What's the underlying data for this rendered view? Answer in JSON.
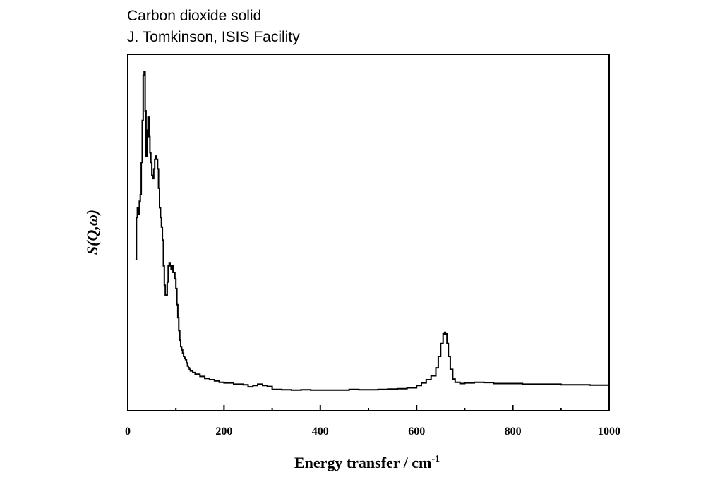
{
  "header": {
    "title_line1": "Carbon dioxide solid",
    "title_line2": "J. Tomkinson, ISIS Facility"
  },
  "chart_data": {
    "type": "line",
    "title": "Carbon dioxide solid",
    "subtitle": "J. Tomkinson, ISIS Facility",
    "xlabel": "Energy transfer / cm",
    "xlabel_superscript": "-1",
    "ylabel": "S(Q,ω)",
    "xlim": [
      0,
      1000
    ],
    "ylim": [
      0,
      1.0
    ],
    "x_ticks": [
      0,
      200,
      400,
      600,
      800,
      1000
    ],
    "x_tick_labels": [
      "0",
      "200",
      "400",
      "600",
      "800",
      "1000"
    ],
    "y_ticks_shown": false,
    "grid": false,
    "legend": "none",
    "line_color": "#000000",
    "series": [
      {
        "x": [
          16,
          18,
          20,
          22,
          24,
          26,
          28,
          30,
          32,
          34,
          36,
          38,
          40,
          42,
          44,
          46,
          48,
          50,
          52,
          54,
          56,
          58,
          60,
          62,
          64,
          66,
          68,
          70,
          72,
          74,
          76,
          78,
          80,
          82,
          84,
          86,
          88,
          90,
          92,
          94,
          96,
          98,
          100,
          102,
          104,
          106,
          108,
          110,
          112,
          114,
          116,
          118,
          120,
          122,
          124,
          126,
          128,
          130,
          135,
          140,
          150,
          160,
          170,
          180,
          190,
          200,
          220,
          240,
          250,
          260,
          270,
          280,
          290,
          300,
          320,
          340,
          360,
          380,
          400,
          420,
          440,
          460,
          480,
          500,
          520,
          540,
          560,
          580,
          600,
          610,
          620,
          630,
          640,
          645,
          650,
          655,
          658,
          660,
          663,
          666,
          670,
          675,
          680,
          690,
          700,
          720,
          740,
          760,
          780,
          800,
          820,
          840,
          860,
          880,
          900,
          920,
          940,
          960,
          980,
          1000
        ],
        "y": [
          0.42,
          0.55,
          0.58,
          0.56,
          0.6,
          0.62,
          0.72,
          0.85,
          0.99,
          1.0,
          0.88,
          0.74,
          0.82,
          0.86,
          0.8,
          0.75,
          0.72,
          0.68,
          0.67,
          0.7,
          0.73,
          0.74,
          0.73,
          0.7,
          0.64,
          0.58,
          0.55,
          0.52,
          0.48,
          0.4,
          0.34,
          0.31,
          0.31,
          0.35,
          0.4,
          0.41,
          0.4,
          0.39,
          0.4,
          0.38,
          0.38,
          0.36,
          0.33,
          0.28,
          0.24,
          0.2,
          0.17,
          0.15,
          0.14,
          0.13,
          0.12,
          0.115,
          0.11,
          0.1,
          0.09,
          0.085,
          0.08,
          0.075,
          0.07,
          0.065,
          0.058,
          0.052,
          0.048,
          0.044,
          0.04,
          0.038,
          0.034,
          0.032,
          0.026,
          0.03,
          0.034,
          0.03,
          0.027,
          0.018,
          0.017,
          0.016,
          0.017,
          0.016,
          0.016,
          0.016,
          0.016,
          0.018,
          0.017,
          0.017,
          0.018,
          0.019,
          0.02,
          0.023,
          0.03,
          0.038,
          0.048,
          0.06,
          0.085,
          0.12,
          0.16,
          0.19,
          0.195,
          0.19,
          0.16,
          0.12,
          0.08,
          0.05,
          0.04,
          0.036,
          0.038,
          0.04,
          0.039,
          0.036,
          0.036,
          0.036,
          0.034,
          0.034,
          0.034,
          0.034,
          0.032,
          0.032,
          0.032,
          0.031,
          0.031,
          0.031
        ]
      }
    ]
  }
}
